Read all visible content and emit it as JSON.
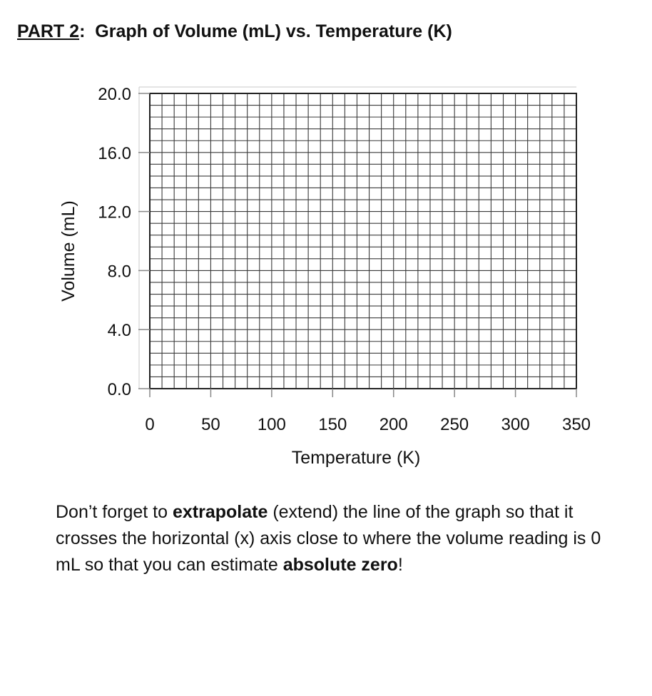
{
  "heading": {
    "part": "PART 2",
    "colon": ":",
    "title": "Graph of Volume (mL) vs. Temperature (K)"
  },
  "chart_data": {
    "type": "line",
    "title": "Graph of Volume (mL) vs. Temperature (K)",
    "xlabel": "Temperature (K)",
    "ylabel": "Volume (mL)",
    "xlim": [
      0,
      350
    ],
    "ylim": [
      0,
      20
    ],
    "x_ticks": [
      "0",
      "50",
      "100",
      "150",
      "200",
      "250",
      "300",
      "350"
    ],
    "y_ticks": [
      "0.0",
      "4.0",
      "8.0",
      "12.0",
      "16.0",
      "20.0"
    ],
    "grid": true,
    "series": []
  },
  "note": {
    "part1": "Don’t forget to ",
    "bold1": "extrapolate",
    "part2": " (extend) the line of the graph so that it crosses the horizontal (x) axis close to where the volume reading is 0 mL so that you can estimate ",
    "bold2": "absolute zero",
    "part3": "!"
  }
}
